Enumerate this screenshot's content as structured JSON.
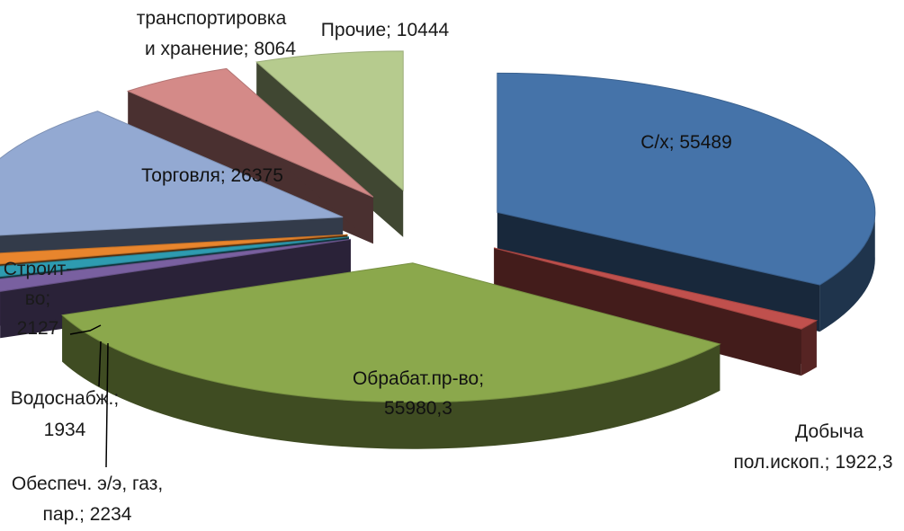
{
  "chart_data": {
    "type": "pie",
    "title": "",
    "exploded": true,
    "three_d": true,
    "slices": [
      {
        "name": "С/х",
        "value": 55489,
        "label": "С/х; 55489",
        "color": "#4573A9"
      },
      {
        "name": "Добыча пол.ископ.",
        "value": 1922.3,
        "label_lines": [
          "Добыча",
          "пол.ископ.; 1922,3"
        ],
        "color": "#C0504D"
      },
      {
        "name": "Обрабат.пр-во",
        "value": 55980.3,
        "label_lines": [
          "Обрабат.пр-во;",
          "55980,3"
        ],
        "color": "#8BA84C"
      },
      {
        "name": "Обеспеч. э/э, газ, пар.",
        "value": 2234,
        "label_lines": [
          "Обеспеч. э/э, газ,",
          "пар.; 2234"
        ],
        "color": "#7960A0"
      },
      {
        "name": "Водоснабж.",
        "value": 1934,
        "label_lines": [
          "Водоснабж.;",
          "1934"
        ],
        "color": "#2E9BB0"
      },
      {
        "name": "Строит-во",
        "value": 2127,
        "label_lines": [
          "Строит-",
          "во;",
          "2127"
        ],
        "color": "#E8852D"
      },
      {
        "name": "Торговля",
        "value": 26375,
        "label": "Торговля; 26375",
        "color": "#93A9D2"
      },
      {
        "name": "транспортировка и хранение",
        "value": 8064,
        "label_lines": [
          "транспортировка",
          "и хранение; 8064"
        ],
        "color": "#D48A88"
      },
      {
        "name": "Прочие",
        "value": 10444,
        "label": "Прочие; 10444",
        "color": "#B6CB8E"
      }
    ]
  }
}
